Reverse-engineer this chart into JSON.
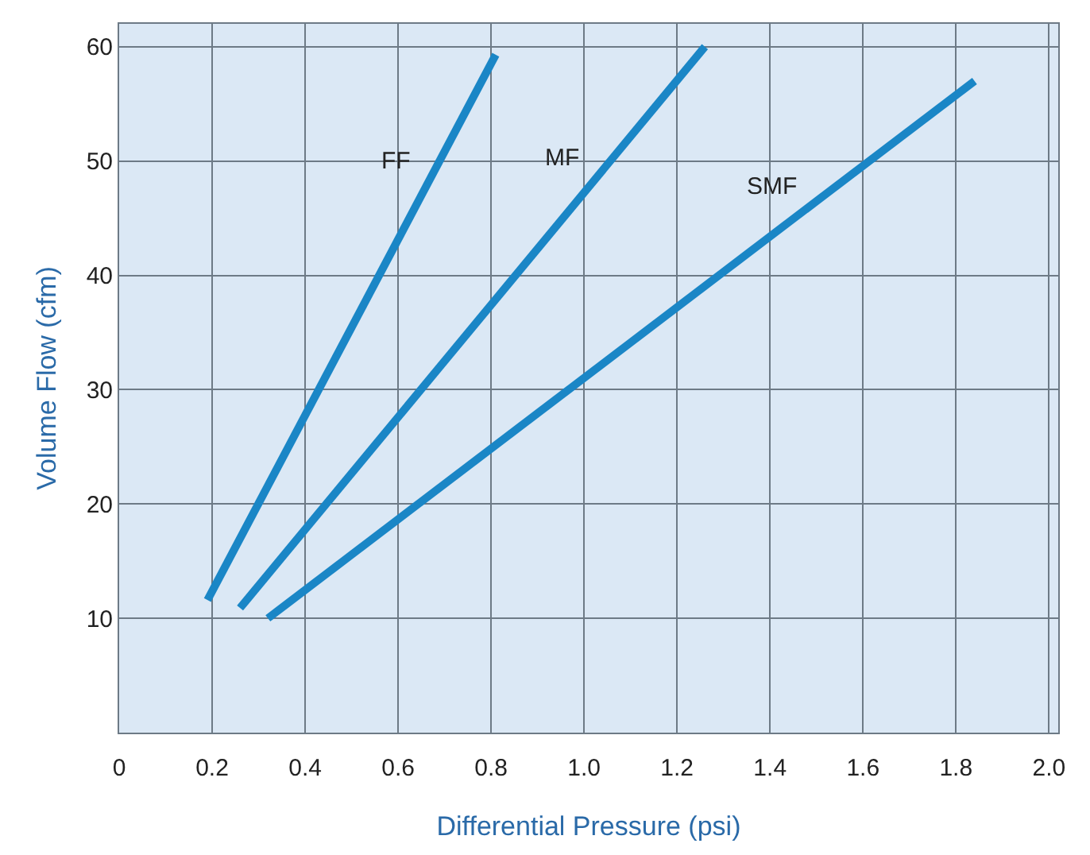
{
  "chart_data": {
    "type": "line",
    "xlabel": "Differential Pressure (psi)",
    "ylabel": "Volume Flow (cfm)",
    "series": [
      {
        "name": "FF",
        "color": "#1a86c6",
        "x": [
          0.19,
          0.81
        ],
        "values": [
          11.6,
          59.3
        ]
      },
      {
        "name": "MF",
        "color": "#1a86c6",
        "x": [
          0.26,
          1.26
        ],
        "values": [
          10.9,
          60
        ]
      },
      {
        "name": "SMF",
        "color": "#1a86c6",
        "x": [
          0.32,
          1.84
        ],
        "values": [
          10,
          57
        ]
      }
    ],
    "xlim": [
      0,
      2.02
    ],
    "ylim": [
      0,
      62
    ],
    "xticks": [
      {
        "value": 0,
        "label": "0"
      },
      0.2,
      0.4,
      0.6,
      0.8,
      {
        "value": 1,
        "label": "1.0"
      },
      1.2,
      1.4,
      1.6,
      1.8,
      {
        "value": 2,
        "label": "2.0"
      }
    ],
    "yticks": [
      10,
      20,
      30,
      40,
      50,
      60
    ],
    "grid": true,
    "legend": false,
    "marker": "none",
    "line_style": "solid"
  }
}
